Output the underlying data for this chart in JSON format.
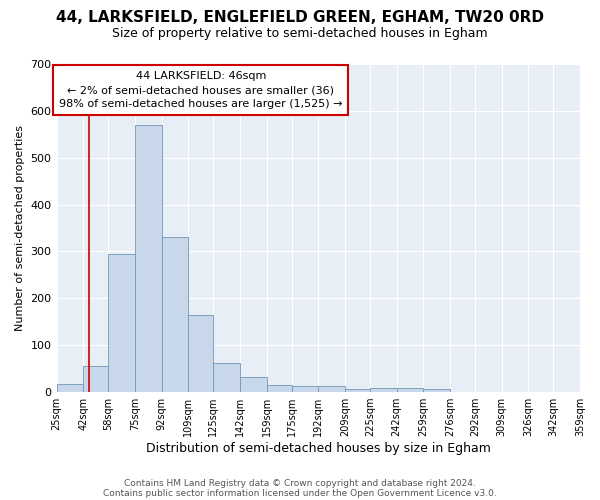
{
  "title1": "44, LARKSFIELD, ENGLEFIELD GREEN, EGHAM, TW20 0RD",
  "title2": "Size of property relative to semi-detached houses in Egham",
  "xlabel": "Distribution of semi-detached houses by size in Egham",
  "ylabel": "Number of semi-detached properties",
  "footer1": "Contains HM Land Registry data © Crown copyright and database right 2024.",
  "footer2": "Contains public sector information licensed under the Open Government Licence v3.0.",
  "annotation_title": "44 LARKSFIELD: 46sqm",
  "annotation_line1": "← 2% of semi-detached houses are smaller (36)",
  "annotation_line2": "98% of semi-detached houses are larger (1,525) →",
  "bar_color": "#c8d8ea",
  "bar_edge_color": "#7098b8",
  "redline_x": 46,
  "bin_edges": [
    25,
    42,
    58,
    75,
    92,
    109,
    125,
    142,
    159,
    175,
    192,
    209,
    225,
    242,
    259,
    276,
    292,
    309,
    326,
    342,
    359
  ],
  "bar_heights": [
    18,
    55,
    295,
    570,
    330,
    165,
    62,
    32,
    16,
    14,
    14,
    6,
    8,
    9,
    6,
    0,
    0,
    0,
    0,
    0
  ],
  "ylim": [
    0,
    700
  ],
  "yticks": [
    0,
    100,
    200,
    300,
    400,
    500,
    600,
    700
  ],
  "annotation_box_color": "white",
  "annotation_box_edge": "#cc0000",
  "redline_color": "#cc0000",
  "background_color": "#e8eef5",
  "grid_color": "white",
  "title1_fontsize": 11,
  "title2_fontsize": 9,
  "xlabel_fontsize": 9,
  "ylabel_fontsize": 8,
  "tick_fontsize": 7,
  "footer_fontsize": 6.5
}
